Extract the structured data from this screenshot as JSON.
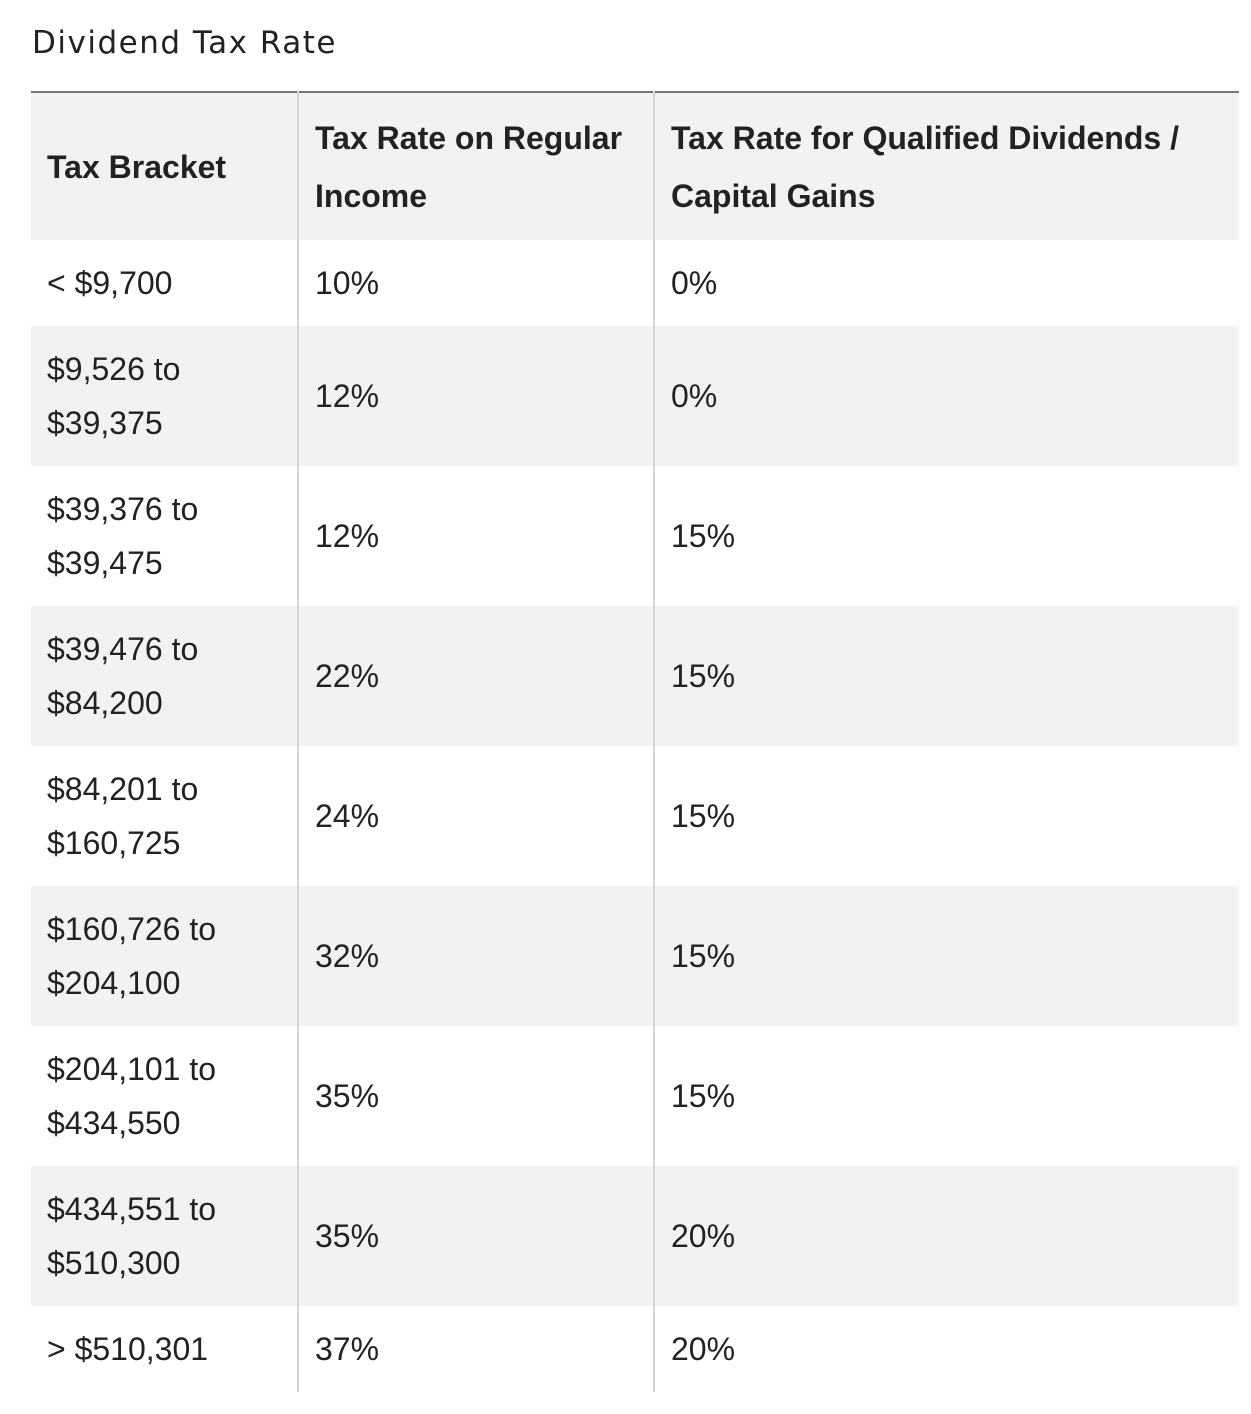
{
  "caption": "Dividend Tax Rate",
  "table": {
    "headers": [
      "Tax Bracket",
      "Tax Rate on Regular Income",
      "Tax Rate for Qualified Dividends / Capital Gains"
    ],
    "rows": [
      [
        "< $9,700",
        "10%",
        "0%"
      ],
      [
        "$9,526 to $39,375",
        "12%",
        "0%"
      ],
      [
        "$39,376 to $39,475",
        "12%",
        "15%"
      ],
      [
        "$39,476 to $84,200",
        "22%",
        "15%"
      ],
      [
        "$84,201 to $160,725",
        "24%",
        "15%"
      ],
      [
        "$160,726 to $204,100",
        "32%",
        "15%"
      ],
      [
        "$204,101 to $434,550",
        "35%",
        "15%"
      ],
      [
        "$434,551 to $510,300",
        "35%",
        "20%"
      ],
      [
        "> $510,301",
        "37%",
        "20%"
      ]
    ]
  }
}
